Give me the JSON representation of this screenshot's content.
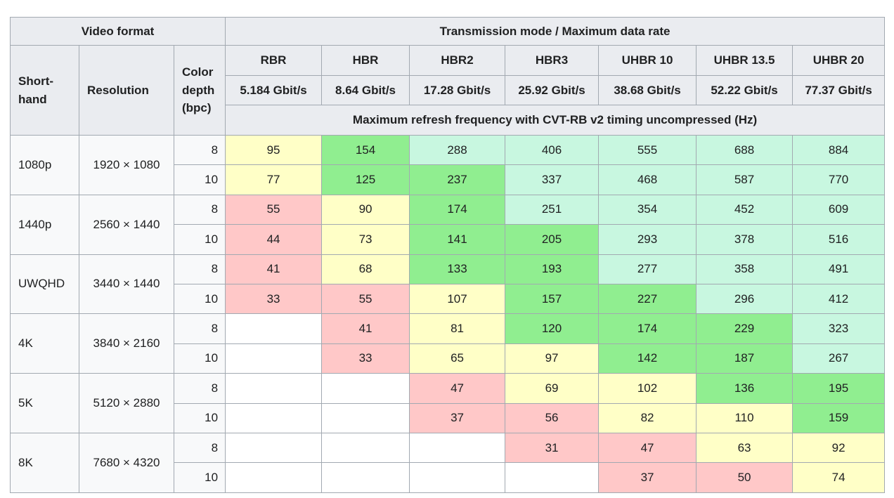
{
  "chart_data": {
    "type": "table",
    "title": "Transmission mode / Maximum data rate",
    "header": {
      "video_format": "Video format",
      "transmission": "Transmission mode / Maximum data rate",
      "shorthand": "Short-hand",
      "resolution": "Resolution",
      "color_depth": "Color depth (bpc)",
      "modes": [
        {
          "name": "RBR",
          "rate": "5.184 Gbit/s"
        },
        {
          "name": "HBR",
          "rate": "8.64 Gbit/s"
        },
        {
          "name": "HBR2",
          "rate": "17.28 Gbit/s"
        },
        {
          "name": "HBR3",
          "rate": "25.92 Gbit/s"
        },
        {
          "name": "UHBR 10",
          "rate": "38.68 Gbit/s"
        },
        {
          "name": "UHBR 13.5",
          "rate": "52.22 Gbit/s"
        },
        {
          "name": "UHBR 20",
          "rate": "77.37 Gbit/s"
        }
      ],
      "refresh_note": "Maximum refresh frequency with CVT-RB v2 timing uncompressed (Hz)"
    },
    "cell_colors": {
      "white": "#ffffff",
      "red": "#ffc8c8",
      "yellow": "#ffffc7",
      "green": "#90ee90",
      "mint": "#c8f7e0",
      "header_bg": "#eaecf0",
      "row_header_bg": "#f8f9fa",
      "border": "#a2a9b1"
    },
    "groups": [
      {
        "shorthand": "1080p",
        "resolution": "1920 × 1080",
        "rows": [
          {
            "bpc": "8",
            "cells": [
              {
                "v": "95",
                "c": "yellow"
              },
              {
                "v": "154",
                "c": "green"
              },
              {
                "v": "288",
                "c": "mint"
              },
              {
                "v": "406",
                "c": "mint"
              },
              {
                "v": "555",
                "c": "mint"
              },
              {
                "v": "688",
                "c": "mint"
              },
              {
                "v": "884",
                "c": "mint"
              }
            ]
          },
          {
            "bpc": "10",
            "cells": [
              {
                "v": "77",
                "c": "yellow"
              },
              {
                "v": "125",
                "c": "green"
              },
              {
                "v": "237",
                "c": "green"
              },
              {
                "v": "337",
                "c": "mint"
              },
              {
                "v": "468",
                "c": "mint"
              },
              {
                "v": "587",
                "c": "mint"
              },
              {
                "v": "770",
                "c": "mint"
              }
            ]
          }
        ]
      },
      {
        "shorthand": "1440p",
        "resolution": "2560 × 1440",
        "rows": [
          {
            "bpc": "8",
            "cells": [
              {
                "v": "55",
                "c": "red"
              },
              {
                "v": "90",
                "c": "yellow"
              },
              {
                "v": "174",
                "c": "green"
              },
              {
                "v": "251",
                "c": "mint"
              },
              {
                "v": "354",
                "c": "mint"
              },
              {
                "v": "452",
                "c": "mint"
              },
              {
                "v": "609",
                "c": "mint"
              }
            ]
          },
          {
            "bpc": "10",
            "cells": [
              {
                "v": "44",
                "c": "red"
              },
              {
                "v": "73",
                "c": "yellow"
              },
              {
                "v": "141",
                "c": "green"
              },
              {
                "v": "205",
                "c": "green"
              },
              {
                "v": "293",
                "c": "mint"
              },
              {
                "v": "378",
                "c": "mint"
              },
              {
                "v": "516",
                "c": "mint"
              }
            ]
          }
        ]
      },
      {
        "shorthand": "UWQHD",
        "resolution": "3440 × 1440",
        "rows": [
          {
            "bpc": "8",
            "cells": [
              {
                "v": "41",
                "c": "red"
              },
              {
                "v": "68",
                "c": "yellow"
              },
              {
                "v": "133",
                "c": "green"
              },
              {
                "v": "193",
                "c": "green"
              },
              {
                "v": "277",
                "c": "mint"
              },
              {
                "v": "358",
                "c": "mint"
              },
              {
                "v": "491",
                "c": "mint"
              }
            ]
          },
          {
            "bpc": "10",
            "cells": [
              {
                "v": "33",
                "c": "red"
              },
              {
                "v": "55",
                "c": "red"
              },
              {
                "v": "107",
                "c": "yellow"
              },
              {
                "v": "157",
                "c": "green"
              },
              {
                "v": "227",
                "c": "green"
              },
              {
                "v": "296",
                "c": "mint"
              },
              {
                "v": "412",
                "c": "mint"
              }
            ]
          }
        ]
      },
      {
        "shorthand": "4K",
        "resolution": "3840 × 2160",
        "rows": [
          {
            "bpc": "8",
            "cells": [
              {
                "v": "",
                "c": "white"
              },
              {
                "v": "41",
                "c": "red"
              },
              {
                "v": "81",
                "c": "yellow"
              },
              {
                "v": "120",
                "c": "green"
              },
              {
                "v": "174",
                "c": "green"
              },
              {
                "v": "229",
                "c": "green"
              },
              {
                "v": "323",
                "c": "mint"
              }
            ]
          },
          {
            "bpc": "10",
            "cells": [
              {
                "v": "",
                "c": "white"
              },
              {
                "v": "33",
                "c": "red"
              },
              {
                "v": "65",
                "c": "yellow"
              },
              {
                "v": "97",
                "c": "yellow"
              },
              {
                "v": "142",
                "c": "green"
              },
              {
                "v": "187",
                "c": "green"
              },
              {
                "v": "267",
                "c": "mint"
              }
            ]
          }
        ]
      },
      {
        "shorthand": "5K",
        "resolution": "5120 × 2880",
        "rows": [
          {
            "bpc": "8",
            "cells": [
              {
                "v": "",
                "c": "white"
              },
              {
                "v": "",
                "c": "white"
              },
              {
                "v": "47",
                "c": "red"
              },
              {
                "v": "69",
                "c": "yellow"
              },
              {
                "v": "102",
                "c": "yellow"
              },
              {
                "v": "136",
                "c": "green"
              },
              {
                "v": "195",
                "c": "green"
              }
            ]
          },
          {
            "bpc": "10",
            "cells": [
              {
                "v": "",
                "c": "white"
              },
              {
                "v": "",
                "c": "white"
              },
              {
                "v": "37",
                "c": "red"
              },
              {
                "v": "56",
                "c": "red"
              },
              {
                "v": "82",
                "c": "yellow"
              },
              {
                "v": "110",
                "c": "yellow"
              },
              {
                "v": "159",
                "c": "green"
              }
            ]
          }
        ]
      },
      {
        "shorthand": "8K",
        "resolution": "7680 × 4320",
        "rows": [
          {
            "bpc": "8",
            "cells": [
              {
                "v": "",
                "c": "white"
              },
              {
                "v": "",
                "c": "white"
              },
              {
                "v": "",
                "c": "white"
              },
              {
                "v": "31",
                "c": "red"
              },
              {
                "v": "47",
                "c": "red"
              },
              {
                "v": "63",
                "c": "yellow"
              },
              {
                "v": "92",
                "c": "yellow"
              }
            ]
          },
          {
            "bpc": "10",
            "cells": [
              {
                "v": "",
                "c": "white"
              },
              {
                "v": "",
                "c": "white"
              },
              {
                "v": "",
                "c": "white"
              },
              {
                "v": "",
                "c": "white"
              },
              {
                "v": "37",
                "c": "red"
              },
              {
                "v": "50",
                "c": "red"
              },
              {
                "v": "74",
                "c": "yellow"
              }
            ]
          }
        ]
      }
    ]
  }
}
